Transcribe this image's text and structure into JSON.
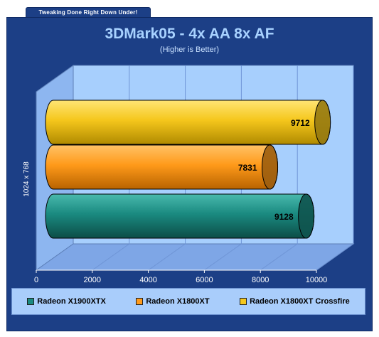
{
  "tagline": "Tweaking Done Right Down Under!",
  "chart_data": {
    "type": "bar",
    "orientation": "horizontal",
    "style": "3d-cylinder",
    "title": "3DMark05 - 4x AA 8x AF",
    "subtitle": "(Higher is Better)",
    "ylabel": "1024 x 768",
    "xlabel": "",
    "xlim": [
      0,
      10000
    ],
    "xticks": [
      0,
      2000,
      4000,
      6000,
      8000,
      10000
    ],
    "grid": true,
    "legend_position": "bottom",
    "categories": [
      "1024 x 768"
    ],
    "series": [
      {
        "name": "Radeon X1900XTX",
        "values": [
          9128
        ],
        "color": "#1a8a80"
      },
      {
        "name": "Radeon X1800XT",
        "values": [
          7831
        ],
        "color": "#ff9a1a"
      },
      {
        "name": "Radeon X1800XT Crossfire",
        "values": [
          9712
        ],
        "color": "#f5c71c"
      }
    ]
  },
  "colors": {
    "frame": "#1c3f86",
    "plot_background": "#a7cffd",
    "title": "#a8d2ff"
  }
}
